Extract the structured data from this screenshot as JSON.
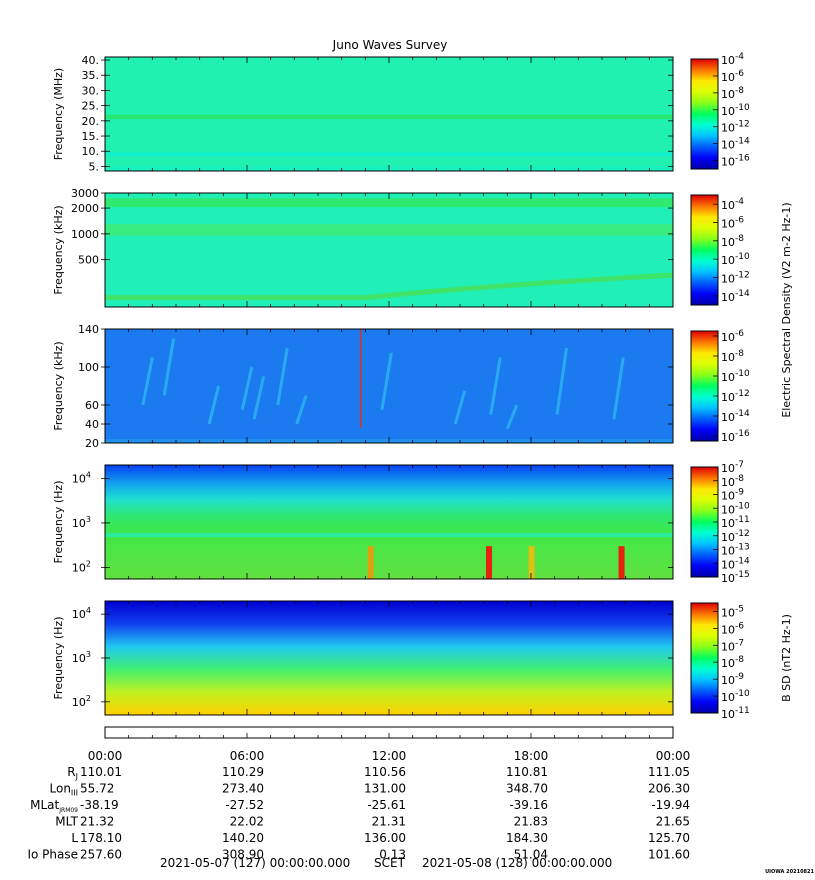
{
  "title": "Juno Waves Survey",
  "watermark": "UIOWA 20210821",
  "chart_data": [
    {
      "type": "heatmap",
      "ylabel": "Frequency (MHz)",
      "yscale": "linear",
      "ylim": [
        3.5,
        41
      ],
      "yticks": [
        "40.",
        "35.",
        "30.",
        "25.",
        "20.",
        "15.",
        "10.",
        "5."
      ],
      "ytick_values": [
        40,
        35,
        30,
        25,
        20,
        15,
        10,
        5
      ],
      "colorbar": {
        "labels": [
          "-4",
          "-6",
          "-8",
          "-10",
          "-12",
          "-14",
          "-16"
        ],
        "exponents": [
          -4,
          -6,
          -8,
          -10,
          -12,
          -14,
          -16
        ],
        "range": [
          -17,
          -4
        ],
        "title": ""
      },
      "features": [
        {
          "description": "uniform background",
          "level": -12.5
        },
        {
          "description": "narrow band near 21 MHz",
          "freq": 21.2,
          "level": -11.5
        },
        {
          "description": "faint band near 9 MHz",
          "freq": 9,
          "level": -13
        }
      ]
    },
    {
      "type": "heatmap",
      "ylabel": "Frequency (kHz)",
      "yscale": "log",
      "ylim": [
        140,
        3000
      ],
      "yticks": [
        "3000",
        "2000",
        "1000",
        "500"
      ],
      "ytick_values": [
        3000,
        2000,
        1000,
        500
      ],
      "colorbar": {
        "labels": [
          "-4",
          "-6",
          "-8",
          "-10",
          "-12",
          "-14"
        ],
        "exponents": [
          -4,
          -6,
          -8,
          -10,
          -12,
          -14
        ],
        "range": [
          -15,
          -3
        ],
        "title": "Electric Spectral Density (V2 m-2 Hz-1)"
      },
      "features": [
        {
          "description": "band near 2.3 MHz across all times",
          "freq": 2300
        },
        {
          "description": "band near 1.1 MHz across all times",
          "freq": 1100
        },
        {
          "description": "low-frequency emission rising after 12:00",
          "freq_start": 180,
          "freq_end": 330
        }
      ]
    },
    {
      "type": "heatmap",
      "ylabel": "Frequency (kHz)",
      "yscale": "linear",
      "ylim": [
        20,
        140
      ],
      "yticks": [
        "140",
        "100",
        "60",
        "40",
        "20"
      ],
      "ytick_values": [
        140,
        100,
        60,
        40,
        20
      ],
      "colorbar": {
        "labels": [
          "-6",
          "-8",
          "-10",
          "-12",
          "-14",
          "-16"
        ],
        "exponents": [
          -6,
          -8,
          -10,
          -12,
          -14,
          -16
        ],
        "range": [
          -16.5,
          -5.5
        ],
        "title": ""
      },
      "features": [
        {
          "description": "blue background with scattered streaks",
          "level": -14
        },
        {
          "description": "short red spike near 10:50",
          "time_h": 10.8
        }
      ]
    },
    {
      "type": "heatmap",
      "ylabel": "Frequency (Hz)",
      "yscale": "log",
      "ylim": [
        55,
        20000
      ],
      "yticks": [
        "10",
        "10",
        "10"
      ],
      "ytick_exponents": [
        4,
        3,
        2
      ],
      "colorbar": {
        "labels": [
          "-7",
          "-8",
          "-9",
          "-10",
          "-11",
          "-12",
          "-13",
          "-14",
          "-15"
        ],
        "exponents": [
          -7,
          -8,
          -9,
          -10,
          -11,
          -12,
          -13,
          -14,
          -15
        ],
        "range": [
          -15,
          -7
        ],
        "title": ""
      },
      "features": [
        {
          "description": "green band below about 600 Hz"
        },
        {
          "description": "intense bursts near 16:00 and 21:45",
          "time_h": [
            16.1,
            21.7
          ]
        }
      ]
    },
    {
      "type": "heatmap",
      "ylabel": "Frequency (Hz)",
      "yscale": "log",
      "ylim": [
        50,
        20000
      ],
      "yticks": [
        "10",
        "10",
        "10"
      ],
      "ytick_exponents": [
        4,
        3,
        2
      ],
      "colorbar": {
        "labels": [
          "-5",
          "-6",
          "-7",
          "-8",
          "-9",
          "-10",
          "-11"
        ],
        "exponents": [
          -5,
          -6,
          -7,
          -8,
          -9,
          -10,
          -11
        ],
        "range": [
          -11,
          -4.5
        ],
        "title": "B SD (nT2 Hz-1)"
      },
      "features": [
        {
          "description": "intensity increasing toward low frequencies"
        }
      ]
    }
  ],
  "time_axis": {
    "ticks": [
      "00:00",
      "06:00",
      "12:00",
      "18:00",
      "00:00"
    ],
    "tick_hours": [
      0,
      6,
      12,
      18,
      24
    ]
  },
  "ephemeris": {
    "rows": [
      {
        "label": "RJ",
        "values": [
          "110.01",
          "110.29",
          "110.56",
          "110.81",
          "111.05"
        ]
      },
      {
        "label": "LonIII",
        "values": [
          "55.72",
          "273.40",
          "131.00",
          "348.70",
          "206.30"
        ]
      },
      {
        "label": "MLatJRM09",
        "values": [
          "-38.19",
          "-27.52",
          "-25.61",
          "-39.16",
          "-19.94"
        ]
      },
      {
        "label": "MLT",
        "values": [
          "21.32",
          "22.02",
          "21.31",
          "21.83",
          "21.65"
        ]
      },
      {
        "label": "L",
        "values": [
          "178.10",
          "140.20",
          "136.00",
          "184.30",
          "125.70"
        ]
      },
      {
        "label": "Io Phase",
        "values": [
          "257.60",
          "308.90",
          "0.13",
          "51.04",
          "101.60"
        ]
      }
    ]
  },
  "footer": {
    "start": "2021-05-07 (127) 00:00:00.000",
    "scet": "SCET",
    "end": "2021-05-08 (128) 00:00:00.000"
  }
}
